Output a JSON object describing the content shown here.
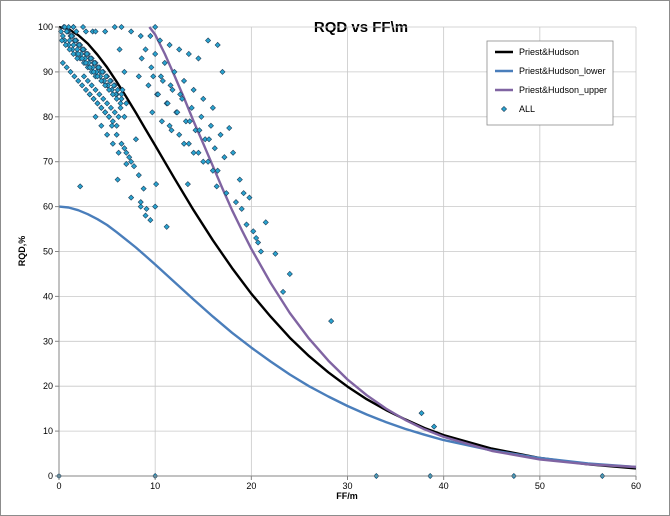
{
  "chart_data": {
    "type": "scatter",
    "title": "RQD vs FF\\m",
    "xlabel": "FF/m",
    "ylabel": "RQD,%",
    "xlim": [
      0,
      60
    ],
    "ylim": [
      0,
      100
    ],
    "x_ticks": [
      0,
      10,
      20,
      30,
      40,
      50,
      60
    ],
    "y_ticks": [
      0,
      10,
      20,
      30,
      40,
      50,
      60,
      70,
      80,
      90,
      100
    ],
    "grid": true,
    "legend_position": "top-right",
    "series": [
      {
        "name": "Priest&Hudson",
        "kind": "line",
        "color": "#000000",
        "x": [
          0,
          1,
          2,
          3,
          4,
          5,
          6,
          7,
          8,
          9,
          10,
          12,
          14,
          16,
          18,
          20,
          22,
          24,
          26,
          28,
          30,
          32,
          34,
          36,
          38,
          40,
          45,
          50,
          55,
          60
        ],
        "y": [
          100,
          99.5,
          98.2,
          96.3,
          93.8,
          91,
          87.8,
          84.4,
          80.9,
          77.2,
          73.6,
          66.3,
          59.2,
          52.5,
          46.3,
          40.6,
          35.5,
          30.8,
          26.7,
          23.1,
          19.9,
          17.1,
          14.7,
          12.6,
          10.7,
          9.1,
          6.1,
          4,
          2.6,
          1.7
        ]
      },
      {
        "name": "Priest&Hudson_lower",
        "kind": "line",
        "color": "#4a7ebb",
        "x": [
          0,
          1,
          2,
          3,
          4,
          5,
          6,
          7,
          8,
          9,
          10,
          12,
          14,
          16,
          18,
          20,
          22,
          24,
          26,
          28,
          30,
          32,
          34,
          36,
          38,
          40,
          45,
          50,
          55,
          60
        ],
        "y": [
          60,
          59.8,
          59.2,
          58.3,
          57.2,
          55.9,
          54.3,
          52.6,
          50.9,
          49,
          47.1,
          43.2,
          39.3,
          35.5,
          31.9,
          28.6,
          25.5,
          22.6,
          20,
          17.7,
          15.6,
          13.7,
          12,
          10.5,
          9.2,
          8,
          5.7,
          4,
          2.8,
          2
        ]
      },
      {
        "name": "Priest&Hudson_upper",
        "kind": "line",
        "color": "#8064a2",
        "x": [
          9.4,
          10,
          11,
          12,
          13,
          14,
          15,
          16,
          17,
          18,
          19,
          20,
          22,
          24,
          26,
          28,
          30,
          32,
          34,
          36,
          38,
          40,
          45,
          50,
          55,
          60
        ],
        "y": [
          100,
          98.3,
          94,
          89.2,
          84.2,
          79,
          74,
          69,
          64,
          59.2,
          54.8,
          50.6,
          43,
          36.3,
          30.6,
          25.7,
          21.5,
          18,
          15,
          12.5,
          10.4,
          8.7,
          5.6,
          3.7,
          2.6,
          2
        ]
      },
      {
        "name": "ALL",
        "kind": "scatter",
        "color": "#29a3cf",
        "x": [
          0.2,
          0.4,
          0.6,
          0.8,
          1,
          1.2,
          1.4,
          1.6,
          1.8,
          2,
          2.2,
          2.4,
          2.6,
          2.8,
          3,
          3.2,
          3.4,
          3.6,
          3.8,
          4,
          4.3,
          4.6,
          5,
          5.5,
          6,
          6.5,
          7,
          0.5,
          1,
          1.5,
          0.3,
          0.7,
          1.1,
          1.5,
          1.9,
          0.4,
          0.8,
          1.2,
          1.6,
          2,
          2.4,
          2.8,
          3.2,
          3.6,
          4,
          4.4,
          4.8,
          5.2,
          0.6,
          1,
          1.4,
          1.8,
          2.2,
          2.6,
          3,
          3.4,
          3.8,
          4.2,
          4.6,
          5,
          5.4,
          5.8,
          0.9,
          1.3,
          1.7,
          2.1,
          2.5,
          2.9,
          3.3,
          3.7,
          4.1,
          4.5,
          4.9,
          5.3,
          5.7,
          6.1,
          6.5,
          1.1,
          1.5,
          1.9,
          2.3,
          2.7,
          3.1,
          3.5,
          3.9,
          4.3,
          4.7,
          5.1,
          5.5,
          5.9,
          6.3,
          2,
          2.4,
          2.8,
          3.2,
          3.6,
          4,
          4.4,
          4.8,
          5.2,
          5.6,
          6,
          6.4,
          6.8,
          2.6,
          3,
          3.4,
          3.8,
          4.2,
          4.6,
          5,
          5.4,
          5.8,
          6.2,
          6.6,
          3.2,
          3.6,
          4,
          4.4,
          4.8,
          5.2,
          5.6,
          6,
          6.4,
          3.8,
          4.4,
          5,
          5.6,
          6.2,
          6.8,
          5.5,
          6,
          6.5,
          7,
          7.5,
          8,
          6.8,
          7.3,
          7.8,
          8.3,
          8.8,
          7.5,
          8.5,
          9,
          9.5,
          10,
          1.5,
          2.5,
          3.5,
          0.8,
          1.8,
          2.8,
          3.8,
          4.8,
          5.8,
          6.5,
          7.5,
          8.5,
          9.5,
          10.5,
          11.5,
          12.5,
          13.5,
          14.5,
          15.5,
          16.5,
          9,
          10,
          11,
          12,
          13,
          14,
          15,
          16,
          17,
          9.8,
          10.8,
          11.8,
          12.8,
          13.8,
          14.8,
          15.8,
          16.8,
          10.2,
          11.2,
          12.2,
          13.2,
          14.2,
          15.2,
          16.2,
          17.2,
          11.5,
          12.5,
          13.5,
          14.5,
          15.5,
          16.5,
          13,
          14,
          15,
          16,
          13.6,
          14.6,
          15.6,
          8.6,
          9.6,
          10.6,
          11.6,
          12.6,
          8.3,
          9.3,
          10.3,
          11.3,
          12.3,
          9.7,
          10.7,
          11.7,
          2.2,
          6.1,
          7,
          8.5,
          9.1,
          10.1,
          10,
          11.2,
          13.4,
          16.4,
          17.4,
          18.4,
          19,
          19.5,
          20.2,
          21,
          21.5,
          22.5,
          23.3,
          24,
          17.7,
          18.8,
          19.8,
          20.5,
          18.1,
          19.2,
          20.7,
          28.3,
          37.7,
          39,
          0,
          10,
          33,
          38.6,
          47.3,
          56.5
        ],
        "y": [
          99,
          98,
          97,
          99,
          96,
          98,
          95,
          97,
          94,
          96,
          93,
          95,
          92,
          94,
          91,
          93,
          90,
          92,
          89,
          91,
          90,
          88,
          87,
          86,
          85,
          84,
          83,
          100,
          100,
          100,
          97,
          96,
          95,
          94,
          93,
          92,
          91,
          90,
          89,
          88,
          87,
          86,
          85,
          84,
          83,
          82,
          81,
          80,
          100,
          99,
          98,
          97,
          96,
          95,
          94,
          93,
          92,
          91,
          90,
          89,
          88,
          87,
          99,
          98,
          97,
          96,
          95,
          94,
          93,
          92,
          91,
          90,
          89,
          88,
          87,
          86,
          85,
          97,
          96,
          95,
          94,
          93,
          92,
          91,
          90,
          89,
          88,
          87,
          86,
          85,
          95,
          94,
          93,
          92,
          91,
          90,
          89,
          88,
          87,
          86,
          85,
          84,
          83,
          90,
          89,
          88,
          87,
          86,
          85,
          84,
          83,
          82,
          81,
          80,
          86,
          85,
          84,
          83,
          82,
          81,
          80,
          79,
          78,
          82,
          80,
          78,
          76,
          74,
          72,
          80,
          78,
          76,
          74,
          72,
          70,
          75,
          73,
          71,
          69,
          67,
          64,
          62,
          60,
          58,
          57,
          100,
          100,
          100,
          99,
          99,
          99,
          99,
          99,
          99,
          100,
          100,
          99,
          98,
          98,
          97,
          96,
          95,
          94,
          93,
          97,
          96,
          95,
          94,
          92,
          90,
          88,
          86,
          84,
          82,
          90,
          89,
          88,
          86,
          84,
          82,
          80,
          78,
          76,
          85,
          83,
          81,
          79,
          77,
          75,
          73,
          71,
          78,
          76,
          74,
          72,
          70,
          68,
          74,
          72,
          70,
          68,
          79,
          77,
          75,
          93,
          91,
          89,
          87,
          85,
          89,
          87,
          85,
          83,
          81,
          81,
          79,
          77,
          64.5,
          66,
          69.5,
          61,
          59.5,
          65,
          60,
          55.5,
          65,
          64.5,
          63,
          61,
          59.5,
          56,
          54.5,
          50,
          56.5,
          49.5,
          41,
          45,
          77.5,
          66,
          62,
          53,
          72,
          63,
          52,
          34.5,
          14,
          11,
          0,
          0,
          0,
          0,
          0,
          0
        ]
      }
    ]
  }
}
